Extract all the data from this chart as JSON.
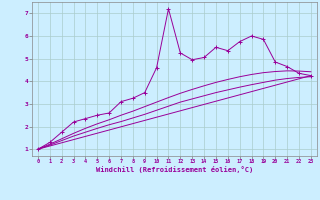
{
  "background_color": "#cceeff",
  "line_color": "#990099",
  "grid_color": "#aacccc",
  "xlabel": "Windchill (Refroidissement éolien,°C)",
  "xlim": [
    -0.5,
    23.5
  ],
  "ylim": [
    0.7,
    7.5
  ],
  "xticks": [
    0,
    1,
    2,
    3,
    4,
    5,
    6,
    7,
    8,
    9,
    10,
    11,
    12,
    13,
    14,
    15,
    16,
    17,
    18,
    19,
    20,
    21,
    22,
    23
  ],
  "yticks": [
    1,
    2,
    3,
    4,
    5,
    6,
    7
  ],
  "series1_x": [
    0,
    1,
    2,
    3,
    4,
    5,
    6,
    7,
    8,
    9,
    10,
    11,
    12,
    13,
    14,
    15,
    16,
    17,
    18,
    19,
    20,
    21,
    22,
    23
  ],
  "series1_y": [
    1.0,
    1.3,
    1.75,
    2.2,
    2.35,
    2.5,
    2.6,
    3.1,
    3.25,
    3.5,
    4.6,
    7.2,
    5.25,
    4.95,
    5.05,
    5.5,
    5.35,
    5.75,
    6.0,
    5.85,
    4.85,
    4.65,
    4.35,
    4.25
  ],
  "series2_x": [
    0,
    1,
    2,
    3,
    4,
    5,
    6,
    7,
    8,
    9,
    10,
    11,
    12,
    13,
    14,
    15,
    16,
    17,
    18,
    19,
    20,
    21,
    22,
    23
  ],
  "series2_y": [
    1.0,
    1.18,
    1.38,
    1.58,
    1.75,
    1.92,
    2.08,
    2.22,
    2.38,
    2.54,
    2.72,
    2.9,
    3.08,
    3.22,
    3.36,
    3.5,
    3.62,
    3.74,
    3.85,
    3.95,
    4.05,
    4.12,
    4.17,
    4.2
  ],
  "series3_x": [
    0,
    1,
    2,
    3,
    4,
    5,
    6,
    7,
    8,
    9,
    10,
    11,
    12,
    13,
    14,
    15,
    16,
    17,
    18,
    19,
    20,
    21,
    22,
    23
  ],
  "series3_y": [
    1.0,
    1.22,
    1.46,
    1.7,
    1.92,
    2.12,
    2.3,
    2.5,
    2.68,
    2.88,
    3.08,
    3.28,
    3.47,
    3.64,
    3.8,
    3.95,
    4.08,
    4.2,
    4.3,
    4.38,
    4.43,
    4.46,
    4.45,
    4.42
  ],
  "series4_x": [
    0,
    23
  ],
  "series4_y": [
    1.0,
    4.25
  ]
}
